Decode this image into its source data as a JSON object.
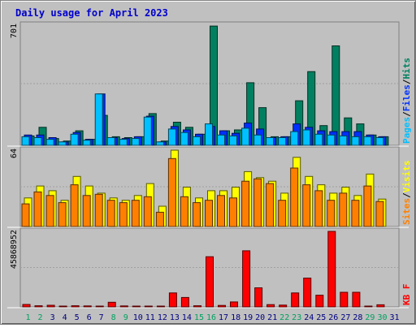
{
  "chart_data": {
    "type": "bar",
    "title": "Daily usage for April 2023",
    "categories": [
      "1",
      "2",
      "3",
      "4",
      "5",
      "6",
      "7",
      "8",
      "9",
      "10",
      "11",
      "12",
      "13",
      "14",
      "15",
      "16",
      "17",
      "18",
      "19",
      "20",
      "21",
      "22",
      "23",
      "24",
      "25",
      "26",
      "27",
      "28",
      "29",
      "30",
      "31"
    ],
    "weekend_days": [
      "1",
      "2",
      "8",
      "9",
      "15",
      "16",
      "22",
      "23",
      "29",
      "30"
    ],
    "panels": [
      {
        "id": "hits-files-pages",
        "max_label": "701",
        "ymax": 701,
        "legend": [
          "Pages",
          "/",
          "Files",
          "/",
          "Hits"
        ],
        "series": [
          {
            "name": "Hits",
            "color": "#008060",
            "values": [
              55,
              105,
              40,
              25,
              85,
              35,
              175,
              50,
              45,
              50,
              185,
              25,
              135,
              105,
              65,
              696,
              85,
              90,
              365,
              220,
              50,
              50,
              260,
              430,
              115,
              580,
              160,
              125,
              60,
              50,
              0
            ]
          },
          {
            "name": "Files",
            "color": "#0030ff",
            "values": [
              60,
              60,
              45,
              20,
              75,
              35,
              300,
              45,
              40,
              50,
              170,
              20,
              110,
              90,
              65,
              110,
              85,
              70,
              130,
              95,
              45,
              50,
              125,
              105,
              85,
              80,
              80,
              80,
              60,
              50,
              0
            ]
          },
          {
            "name": "Pages",
            "color": "#00c0ff",
            "values": [
              50,
              45,
              35,
              20,
              65,
              30,
              300,
              45,
              35,
              40,
              165,
              20,
              95,
              75,
              50,
              125,
              60,
              55,
              100,
              60,
              45,
              45,
              80,
              90,
              65,
              60,
              55,
              50,
              50,
              45,
              0
            ]
          }
        ]
      },
      {
        "id": "sites-visits",
        "max_label": "64",
        "ymax": 64,
        "legend": [
          "Sites",
          "/",
          "Visits"
        ],
        "series": [
          {
            "name": "Visits",
            "color": "#ffff00",
            "values": [
              24,
              34,
              30,
              22,
              42,
              34,
              28,
              24,
              22,
              26,
              36,
              17,
              64,
              33,
              24,
              30,
              30,
              33,
              46,
              41,
              38,
              28,
              58,
              42,
              35,
              28,
              33,
              26,
              44,
              23,
              0
            ]
          },
          {
            "name": "Sites",
            "color": "#ff8000",
            "values": [
              19,
              29,
              26,
              20,
              35,
              26,
              27,
              22,
              20,
              22,
              25,
              12,
              57,
              25,
              20,
              22,
              26,
              24,
              38,
              40,
              36,
              22,
              49,
              35,
              30,
              22,
              28,
              22,
              34,
              21,
              0
            ]
          }
        ]
      },
      {
        "id": "kbf",
        "max_label": "45868952",
        "ymax": 45868952,
        "legend": [
          "KB F"
        ],
        "series": [
          {
            "name": "KB F",
            "color": "#ff0000",
            "values": [
              1500000,
              700000,
              1000000,
              500000,
              700000,
              600000,
              500000,
              2800000,
              600000,
              500000,
              500000,
              500000,
              8500000,
              5700000,
              700000,
              30500000,
              900000,
              3000000,
              34100000,
              11600000,
              1400000,
              1100000,
              8500000,
              17500000,
              7100000,
              45868952,
              8900000,
              8900000,
              500000,
              1300000,
              0
            ]
          }
        ]
      }
    ]
  },
  "colors": {
    "title": "#0000cc",
    "weekday_label": "#000080",
    "weekend_label": "#00a060",
    "background": "#c0c0c0",
    "separator": "#ffffff"
  }
}
